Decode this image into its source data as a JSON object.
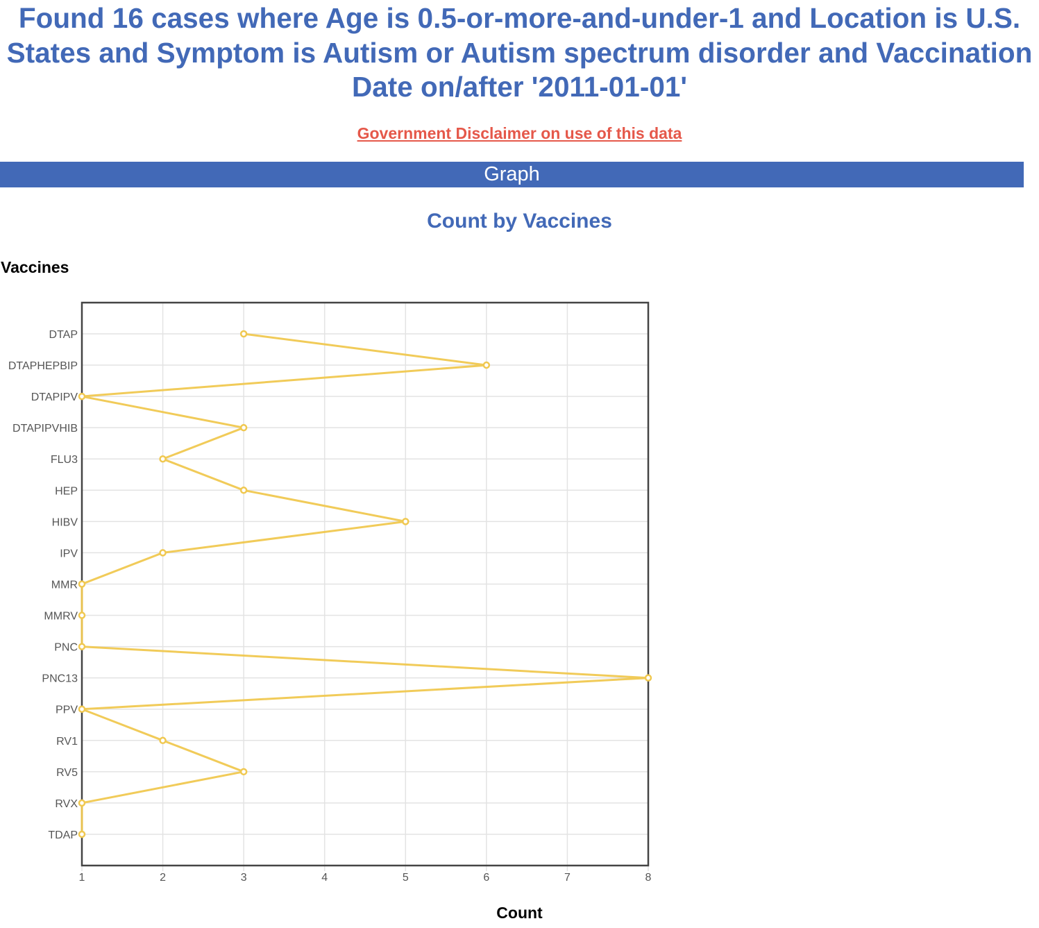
{
  "page": {
    "title": "Found 16 cases where Age is 0.5-or-more-and-under-1 and Location is U.S. States and Symptom is Autism or Autism spectrum disorder and Vaccination Date on/after '2011-01-01'",
    "disclaimer_link": "Government Disclaimer on use of this data",
    "section_header": "Graph"
  },
  "chart_data": {
    "type": "line",
    "title": "Count by Vaccines",
    "xlabel": "Count",
    "ylabel": "Vaccines",
    "orientation": "horizontal",
    "categories": [
      "DTAP",
      "DTAPHEPBIP",
      "DTAPIPV",
      "DTAPIPVHIB",
      "FLU3",
      "HEP",
      "HIBV",
      "IPV",
      "MMR",
      "MMRV",
      "PNC",
      "PNC13",
      "PPV",
      "RV1",
      "RV5",
      "RVX",
      "TDAP"
    ],
    "values": [
      3,
      6,
      1,
      3,
      2,
      3,
      5,
      2,
      1,
      1,
      1,
      8,
      1,
      2,
      3,
      1,
      1
    ],
    "xlim": [
      1,
      8
    ],
    "x_ticks": [
      1,
      2,
      3,
      4,
      5,
      6,
      7,
      8
    ],
    "grid": true,
    "line_color": "#f0c850"
  }
}
